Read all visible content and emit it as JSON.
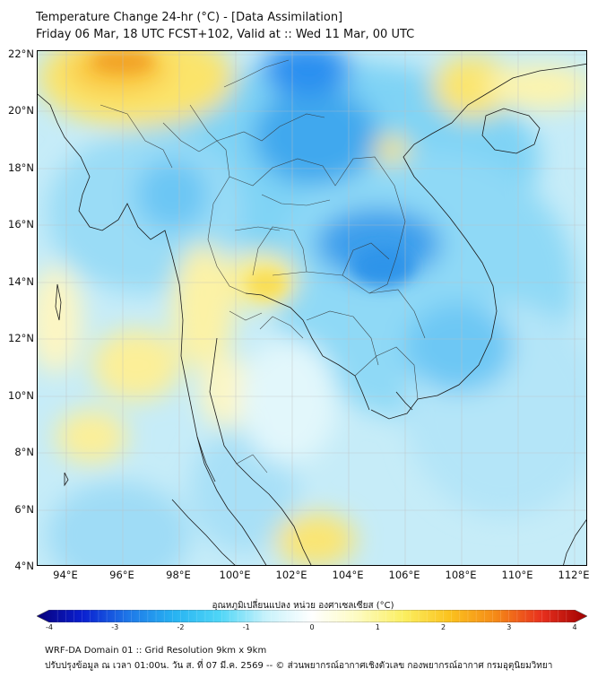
{
  "title": {
    "line1": "Temperature Change 24-hr (°C) - [Data Assimilation]",
    "line2": "Friday 06 Mar, 18 UTC FCST+102, Valid at :: Wed 11 Mar, 00 UTC"
  },
  "map": {
    "lat_labels": [
      "22°N",
      "20°N",
      "18°N",
      "16°N",
      "14°N",
      "12°N",
      "10°N",
      "8°N",
      "6°N",
      "4°N"
    ],
    "lon_labels": [
      "94°E",
      "96°E",
      "98°E",
      "100°E",
      "102°E",
      "104°E",
      "106°E",
      "108°E",
      "110°E",
      "112°E"
    ],
    "lat_range": [
      4,
      22
    ],
    "lon_range": [
      93,
      112.3
    ]
  },
  "colorbar": {
    "title": "อุณหภูมิเปลี่ยนแปลง หน่วย องศาเซลเซียส (°C)",
    "ticks": [
      "-4",
      "-3",
      "-2",
      "-1",
      "0",
      "1",
      "2",
      "3",
      "4"
    ],
    "min": -4,
    "max": 4,
    "colors": [
      "#08007a",
      "#0a1fd0",
      "#1e78e8",
      "#27b3f2",
      "#4fd6f7",
      "#c8f2fb",
      "#ffffff",
      "#fdfbc0",
      "#fbef60",
      "#fbc21e",
      "#f58a17",
      "#e8301e",
      "#a00000"
    ]
  },
  "footer": {
    "line1": "WRF-DA Domain 01 :: Grid Resolution 9km x 9km",
    "line2": "ปรับปรุงข้อมูล ณ เวลา 01:00น. วัน ส. ที่ 07 มี.ค. 2569 -- © ส่วนพยากรณ์อากาศเชิงตัวเลข กองพยากรณ์อากาศ กรมอุตุนิยมวิทยา"
  }
}
